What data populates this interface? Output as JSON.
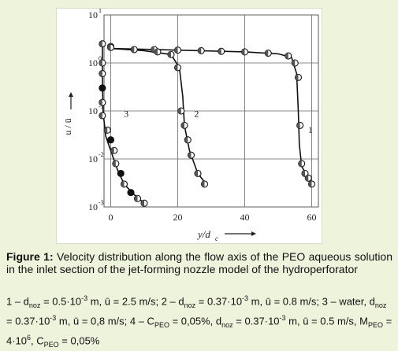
{
  "chart_data": {
    "type": "scatter",
    "title": "",
    "xlabel": "y/d",
    "xlabel_sub": "c",
    "ylabel": "u / ū",
    "xlim": [
      -2,
      62
    ],
    "ylim_log10": [
      -3,
      1
    ],
    "x_ticks": [
      "0",
      "20",
      "40",
      "60"
    ],
    "y_ticks": [
      {
        "base": "10",
        "exp": "1"
      },
      {
        "base": "10",
        "exp": "0"
      },
      {
        "base": "10",
        "exp": "-1"
      },
      {
        "base": "10",
        "exp": "-2"
      },
      {
        "base": "10",
        "exp": "-3"
      }
    ],
    "series": [
      {
        "name": "1",
        "points": [
          [
            0,
            2.2
          ],
          [
            13,
            1.9
          ],
          [
            20,
            1.85
          ],
          [
            27,
            1.8
          ],
          [
            33,
            1.75
          ],
          [
            40,
            1.7
          ],
          [
            47,
            1.6
          ],
          [
            53,
            1.4
          ],
          [
            55,
            1.0
          ],
          [
            56,
            0.5
          ],
          [
            56.5,
            0.05
          ],
          [
            57,
            0.008
          ],
          [
            58,
            0.005
          ],
          [
            59,
            0.004
          ],
          [
            60,
            0.003
          ]
        ],
        "curve": [
          [
            0,
            2.0
          ],
          [
            20,
            1.85
          ],
          [
            40,
            1.7
          ],
          [
            50,
            1.55
          ],
          [
            54,
            1.3
          ],
          [
            55.5,
            0.6
          ],
          [
            56,
            0.1
          ],
          [
            56.3,
            0.02
          ],
          [
            57,
            0.007
          ],
          [
            59,
            0.004
          ],
          [
            60.5,
            0.003
          ]
        ]
      },
      {
        "name": "2",
        "points": [
          [
            0,
            2.1
          ],
          [
            7,
            1.9
          ],
          [
            14,
            1.7
          ],
          [
            18,
            1.5
          ],
          [
            20,
            0.8
          ],
          [
            21,
            0.1
          ],
          [
            22,
            0.05
          ],
          [
            23,
            0.025
          ],
          [
            24,
            0.012
          ],
          [
            26,
            0.005
          ],
          [
            28,
            0.003
          ]
        ],
        "curve": [
          [
            0,
            2.0
          ],
          [
            10,
            1.8
          ],
          [
            18,
            1.5
          ],
          [
            20.5,
            0.8
          ],
          [
            21.5,
            0.2
          ],
          [
            22,
            0.05
          ],
          [
            23.5,
            0.015
          ],
          [
            26,
            0.005
          ],
          [
            28.5,
            0.003
          ]
        ]
      },
      {
        "name": "3",
        "points": [
          [
            -2.5,
            2.5
          ],
          [
            -2.5,
            1.0
          ],
          [
            -2.5,
            0.6
          ],
          [
            -2.5,
            0.3
          ],
          [
            -2.5,
            0.15
          ],
          [
            -2.5,
            0.08
          ],
          [
            -1,
            0.04
          ],
          [
            0,
            0.025
          ],
          [
            1,
            0.015
          ],
          [
            1.5,
            0.008
          ],
          [
            3,
            0.005
          ],
          [
            4,
            0.003
          ],
          [
            6,
            0.002
          ],
          [
            8,
            0.0015
          ],
          [
            10,
            0.0012
          ]
        ],
        "curve": [
          [
            -2.5,
            2.5
          ],
          [
            -2.5,
            0.5
          ],
          [
            -2.3,
            0.1
          ],
          [
            -1.5,
            0.03
          ],
          [
            0,
            0.015
          ],
          [
            2,
            0.006
          ],
          [
            4,
            0.003
          ],
          [
            7,
            0.0018
          ],
          [
            10,
            0.0012
          ]
        ]
      }
    ],
    "filled_points": [
      [
        -2.5,
        0.3
      ],
      [
        0,
        0.025
      ],
      [
        3,
        0.005
      ],
      [
        6,
        0.002
      ]
    ]
  },
  "caption": {
    "label": "Figure 1:",
    "text": " Velocity distribution along the flow axis of the PEO aqueous solution in the inlet section of the jet-forming nozzle model of the hydroperforator",
    "legend": "1 – d_noz = 0.5·10-3 m, ū = 2.5 m/s; 2 – d_noz = 0.37·10-3 m, ū = 0.8 m/s; 3 – water, d_noz = 0.37·10-3 m, ū = 0,8 m/s; 4 – C_PEO = 0,05%, d_noz = 0.37·10-3 m, ū = 0.5 m/s, M_PEO = 4·10^6, C_PEO = 0,05%"
  }
}
